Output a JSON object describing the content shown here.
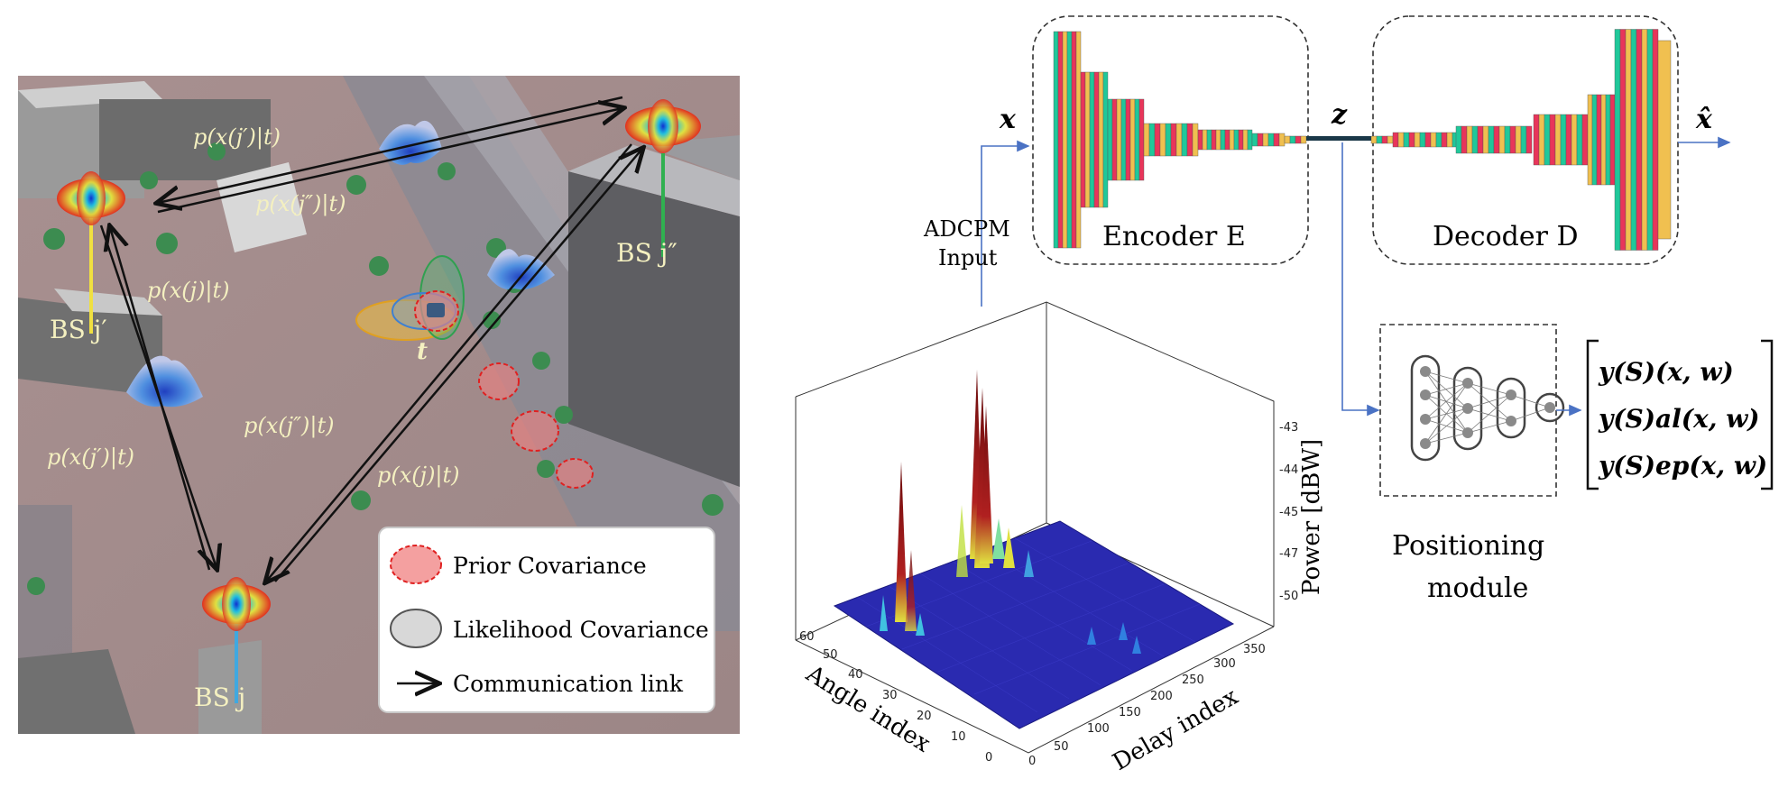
{
  "colors": {
    "link_blue": "#4a72c4",
    "bs_yellow": "#f0e040",
    "bs_green": "#30b050",
    "bs_blue": "#40a8e0",
    "teal_layer": "#20c89a",
    "red_layer": "#e8355a",
    "gold_layer": "#f0c050",
    "surface_blue": "#2a2ab0",
    "peak_red": "#8a1010",
    "prior_red": "#f09090",
    "likelihood_gray": "#d8d8d8"
  },
  "left_panel": {
    "base_station_labels": [
      "BS j′",
      "BS j″",
      "BS j"
    ],
    "target_label": "t",
    "link_labels": [
      "p(x(j′)|t)",
      "p(x(j″)|t)",
      "p(x(j)|t)",
      "p(x(j′)|t)",
      "p(x(j″)|t)",
      "p(x(j)|t)"
    ],
    "legend": [
      {
        "label": "Prior Covariance",
        "icon": "prior-ellipse-icon"
      },
      {
        "label": "Likelihood Covariance",
        "icon": "likelihood-ellipse-icon"
      },
      {
        "label": "Communication link",
        "icon": "arrow-icon"
      }
    ]
  },
  "right_panel": {
    "input_symbol": "x",
    "latent_symbol": "z",
    "output_symbol": "x̂",
    "encoder_label": "Encoder E",
    "decoder_label": "Decoder D",
    "input_caption_line1": "ADCPM",
    "input_caption_line2": "Input",
    "positioning_label_line1": "Positioning",
    "positioning_label_line2": "module",
    "outputs": [
      "y(S)(x, w)",
      "y(S)al(x, w)",
      "y(S)ep(x, w)"
    ]
  },
  "plot3d": {
    "zlabel": "Power [dBW]",
    "xlabel": "Angle index",
    "ylabel": "Delay index",
    "z_ticks": [
      "-43",
      "-44",
      "-45",
      "-47",
      "-50"
    ],
    "angle_ticks": [
      "0",
      "10",
      "20",
      "30",
      "40",
      "50",
      "60"
    ],
    "delay_ticks": [
      "0",
      "50",
      "100",
      "150",
      "200",
      "250",
      "300",
      "350"
    ]
  }
}
